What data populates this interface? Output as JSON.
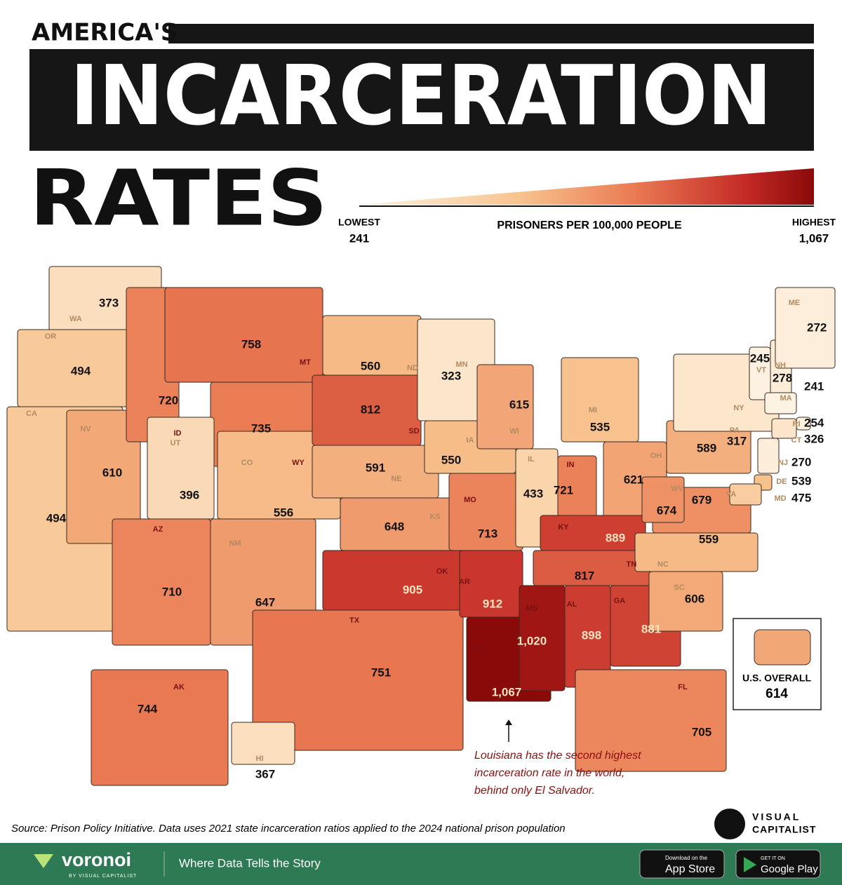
{
  "header": {
    "title_line1": "AMERICA'S",
    "title_line2": "INCARCERATION",
    "title_line3": "RATES"
  },
  "legend": {
    "title": "PRISONERS PER 100,000 PEOPLE",
    "low_label": "LOWEST",
    "low_value": 241,
    "high_label": "HIGHEST",
    "high_value": {
      "value": 1067,
      "label": "1,067"
    }
  },
  "states": [
    {
      "abbr": "WA",
      "rate": 373
    },
    {
      "abbr": "OR",
      "rate": 494
    },
    {
      "abbr": "CA",
      "rate": 494
    },
    {
      "abbr": "NV",
      "rate": 610
    },
    {
      "abbr": "ID",
      "rate": 720
    },
    {
      "abbr": "MT",
      "rate": 758
    },
    {
      "abbr": "WY",
      "rate": 735
    },
    {
      "abbr": "UT",
      "rate": 396
    },
    {
      "abbr": "CO",
      "rate": 556
    },
    {
      "abbr": "AZ",
      "rate": 710
    },
    {
      "abbr": "NM",
      "rate": 647
    },
    {
      "abbr": "ND",
      "rate": 560
    },
    {
      "abbr": "SD",
      "rate": 812
    },
    {
      "abbr": "NE",
      "rate": 591
    },
    {
      "abbr": "KS",
      "rate": 648
    },
    {
      "abbr": "OK",
      "rate": 905
    },
    {
      "abbr": "TX",
      "rate": 751
    },
    {
      "abbr": "MN",
      "rate": 323
    },
    {
      "abbr": "IA",
      "rate": 550
    },
    {
      "abbr": "MO",
      "rate": 713
    },
    {
      "abbr": "AR",
      "rate": 912
    },
    {
      "abbr": "LA",
      "rate": 1067,
      "rate_label": "1,067"
    },
    {
      "abbr": "WI",
      "rate": 615
    },
    {
      "abbr": "IL",
      "rate": 433
    },
    {
      "abbr": "MI",
      "rate": 535
    },
    {
      "abbr": "IN",
      "rate": 721
    },
    {
      "abbr": "OH",
      "rate": 621
    },
    {
      "abbr": "KY",
      "rate": 889
    },
    {
      "abbr": "TN",
      "rate": 817
    },
    {
      "abbr": "MS",
      "rate": 1020,
      "rate_label": "1,020"
    },
    {
      "abbr": "AL",
      "rate": 898
    },
    {
      "abbr": "GA",
      "rate": 881
    },
    {
      "abbr": "FL",
      "rate": 705
    },
    {
      "abbr": "SC",
      "rate": 606
    },
    {
      "abbr": "NC",
      "rate": 559
    },
    {
      "abbr": "VA",
      "rate": 679
    },
    {
      "abbr": "WV",
      "rate": 674
    },
    {
      "abbr": "PA",
      "rate": 589
    },
    {
      "abbr": "NY",
      "rate": 317
    },
    {
      "abbr": "VT",
      "rate": 245
    },
    {
      "abbr": "NH",
      "rate": 278
    },
    {
      "abbr": "ME",
      "rate": 272
    },
    {
      "abbr": "MA",
      "rate": 241
    },
    {
      "abbr": "RI",
      "rate": 254
    },
    {
      "abbr": "CT",
      "rate": 326
    },
    {
      "abbr": "NJ",
      "rate": 270
    },
    {
      "abbr": "DE",
      "rate": 539
    },
    {
      "abbr": "MD",
      "rate": 475
    },
    {
      "abbr": "AK",
      "rate": 744
    },
    {
      "abbr": "HI",
      "rate": 367
    }
  ],
  "inset": {
    "label": "U.S. OVERALL",
    "rate": 614
  },
  "annotation": {
    "lines": [
      "Louisiana has the second highest",
      "incarceration rate in the world,",
      "behind only El Salvador."
    ]
  },
  "source": "Source: Prison Policy Initiative. Data uses 2021 state incarceration ratios applied to the 2024 national prison population",
  "brand": {
    "line1": "VISUAL",
    "line2": "CAPITALIST"
  },
  "footer": {
    "logo": "voronoi",
    "logo_sub": "BY VISUAL CAPITALIST",
    "tagline": "Where Data Tells the Story",
    "app_store_small": "Download on the",
    "app_store": "App Store",
    "google_small": "GET IT ON",
    "google": "Google Play"
  }
}
